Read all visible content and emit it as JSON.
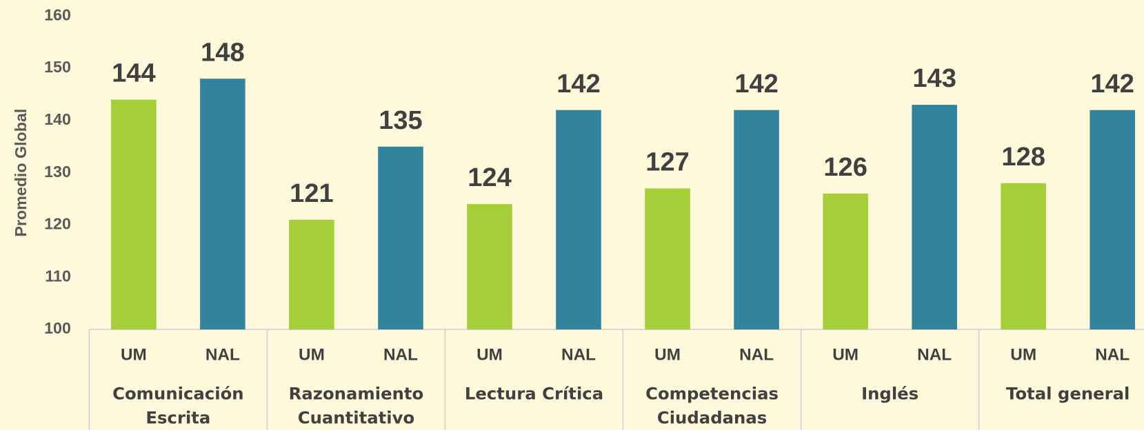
{
  "chart_data": {
    "type": "bar",
    "ylabel": "Promedio Global",
    "categories": [
      "Comunicación Escrita",
      "Razonamiento Cuantitativo",
      "Lectura Crítica",
      "Competencias Ciudadanas",
      "Inglés",
      "Total general"
    ],
    "series": [
      {
        "name": "UM",
        "color": "#a6ce39",
        "values": [
          144,
          121,
          124,
          127,
          126,
          128
        ]
      },
      {
        "name": "NAL",
        "color": "#31849b",
        "values": [
          148,
          135,
          142,
          142,
          143,
          142
        ]
      }
    ],
    "ylim": [
      100,
      160
    ],
    "yticks": [
      100,
      110,
      120,
      130,
      140,
      150,
      160
    ],
    "grid": false
  }
}
